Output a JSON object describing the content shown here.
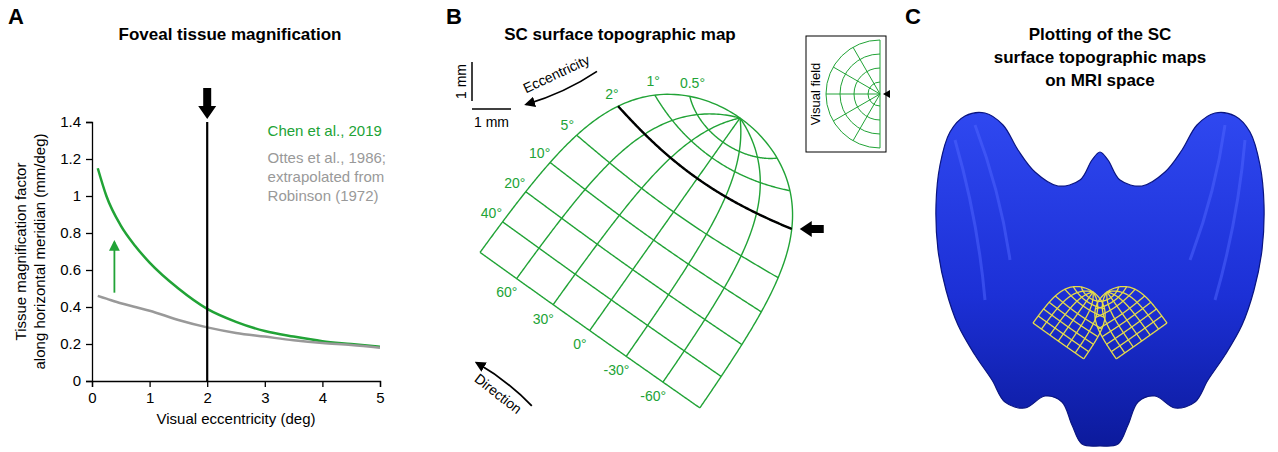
{
  "panel_letters": [
    "A",
    "B",
    "C"
  ],
  "chart_data": {
    "type": "line",
    "title": "Foveal tissue magnification",
    "x_label": "Visual eccentricity (deg)",
    "y_label": "Tissue magnification factor\nalong horizontal meridian (mm/deg)",
    "x": [
      0.1,
      0.25,
      0.5,
      0.75,
      1,
      1.5,
      2,
      2.5,
      3,
      3.5,
      4,
      4.5,
      5
    ],
    "series": [
      {
        "name": "Chen et al., 2019",
        "color": "#21a336",
        "values": [
          1.15,
          1.0,
          0.84,
          0.73,
          0.64,
          0.5,
          0.39,
          0.32,
          0.27,
          0.24,
          0.215,
          0.2,
          0.185
        ]
      },
      {
        "name": "Ottes et al., 1986;\nextrapolated from\nRobinson (1972)",
        "color": "#999999",
        "values": [
          0.46,
          0.445,
          0.42,
          0.4,
          0.38,
          0.33,
          0.29,
          0.26,
          0.24,
          0.22,
          0.205,
          0.195,
          0.18
        ]
      }
    ],
    "xlim": [
      0,
      5
    ],
    "xticks": [
      0,
      1,
      2,
      3,
      4,
      5
    ],
    "ylim": [
      0,
      1.4
    ],
    "yticks": [
      0,
      0.2,
      0.4,
      0.6,
      0.8,
      1,
      1.2,
      1.4
    ],
    "legend": "upper right",
    "vline": 2
  },
  "panel_b": {
    "title": "SC surface topographic map",
    "scale_bar": {
      "value": 1,
      "label": "1 mm"
    },
    "eccentricity_label": "Eccentricity",
    "direction_label": "Direction",
    "inset_label": "Visual field",
    "eccentricity_ticks": [
      {
        "value": 0.5,
        "label": "0.5°"
      },
      {
        "value": 1,
        "label": "1°"
      },
      {
        "value": 2,
        "label": "2°"
      },
      {
        "value": 5,
        "label": "5°"
      },
      {
        "value": 10,
        "label": "10°"
      },
      {
        "value": 20,
        "label": "20°"
      },
      {
        "value": 40,
        "label": "40°"
      }
    ],
    "outer_eccentricity": 80,
    "direction_ticks": [
      {
        "value": 60,
        "label": "60°"
      },
      {
        "value": 30,
        "label": "30°"
      },
      {
        "value": 0,
        "label": "0°"
      },
      {
        "value": -30,
        "label": "-30°"
      },
      {
        "value": -60,
        "label": "-60°"
      }
    ],
    "edge_directions": [
      90,
      -90
    ],
    "highlight_eccentricity": 2
  },
  "panel_c": {
    "title": "Plotting of the SC\nsurface topographic maps\non MRI space"
  }
}
